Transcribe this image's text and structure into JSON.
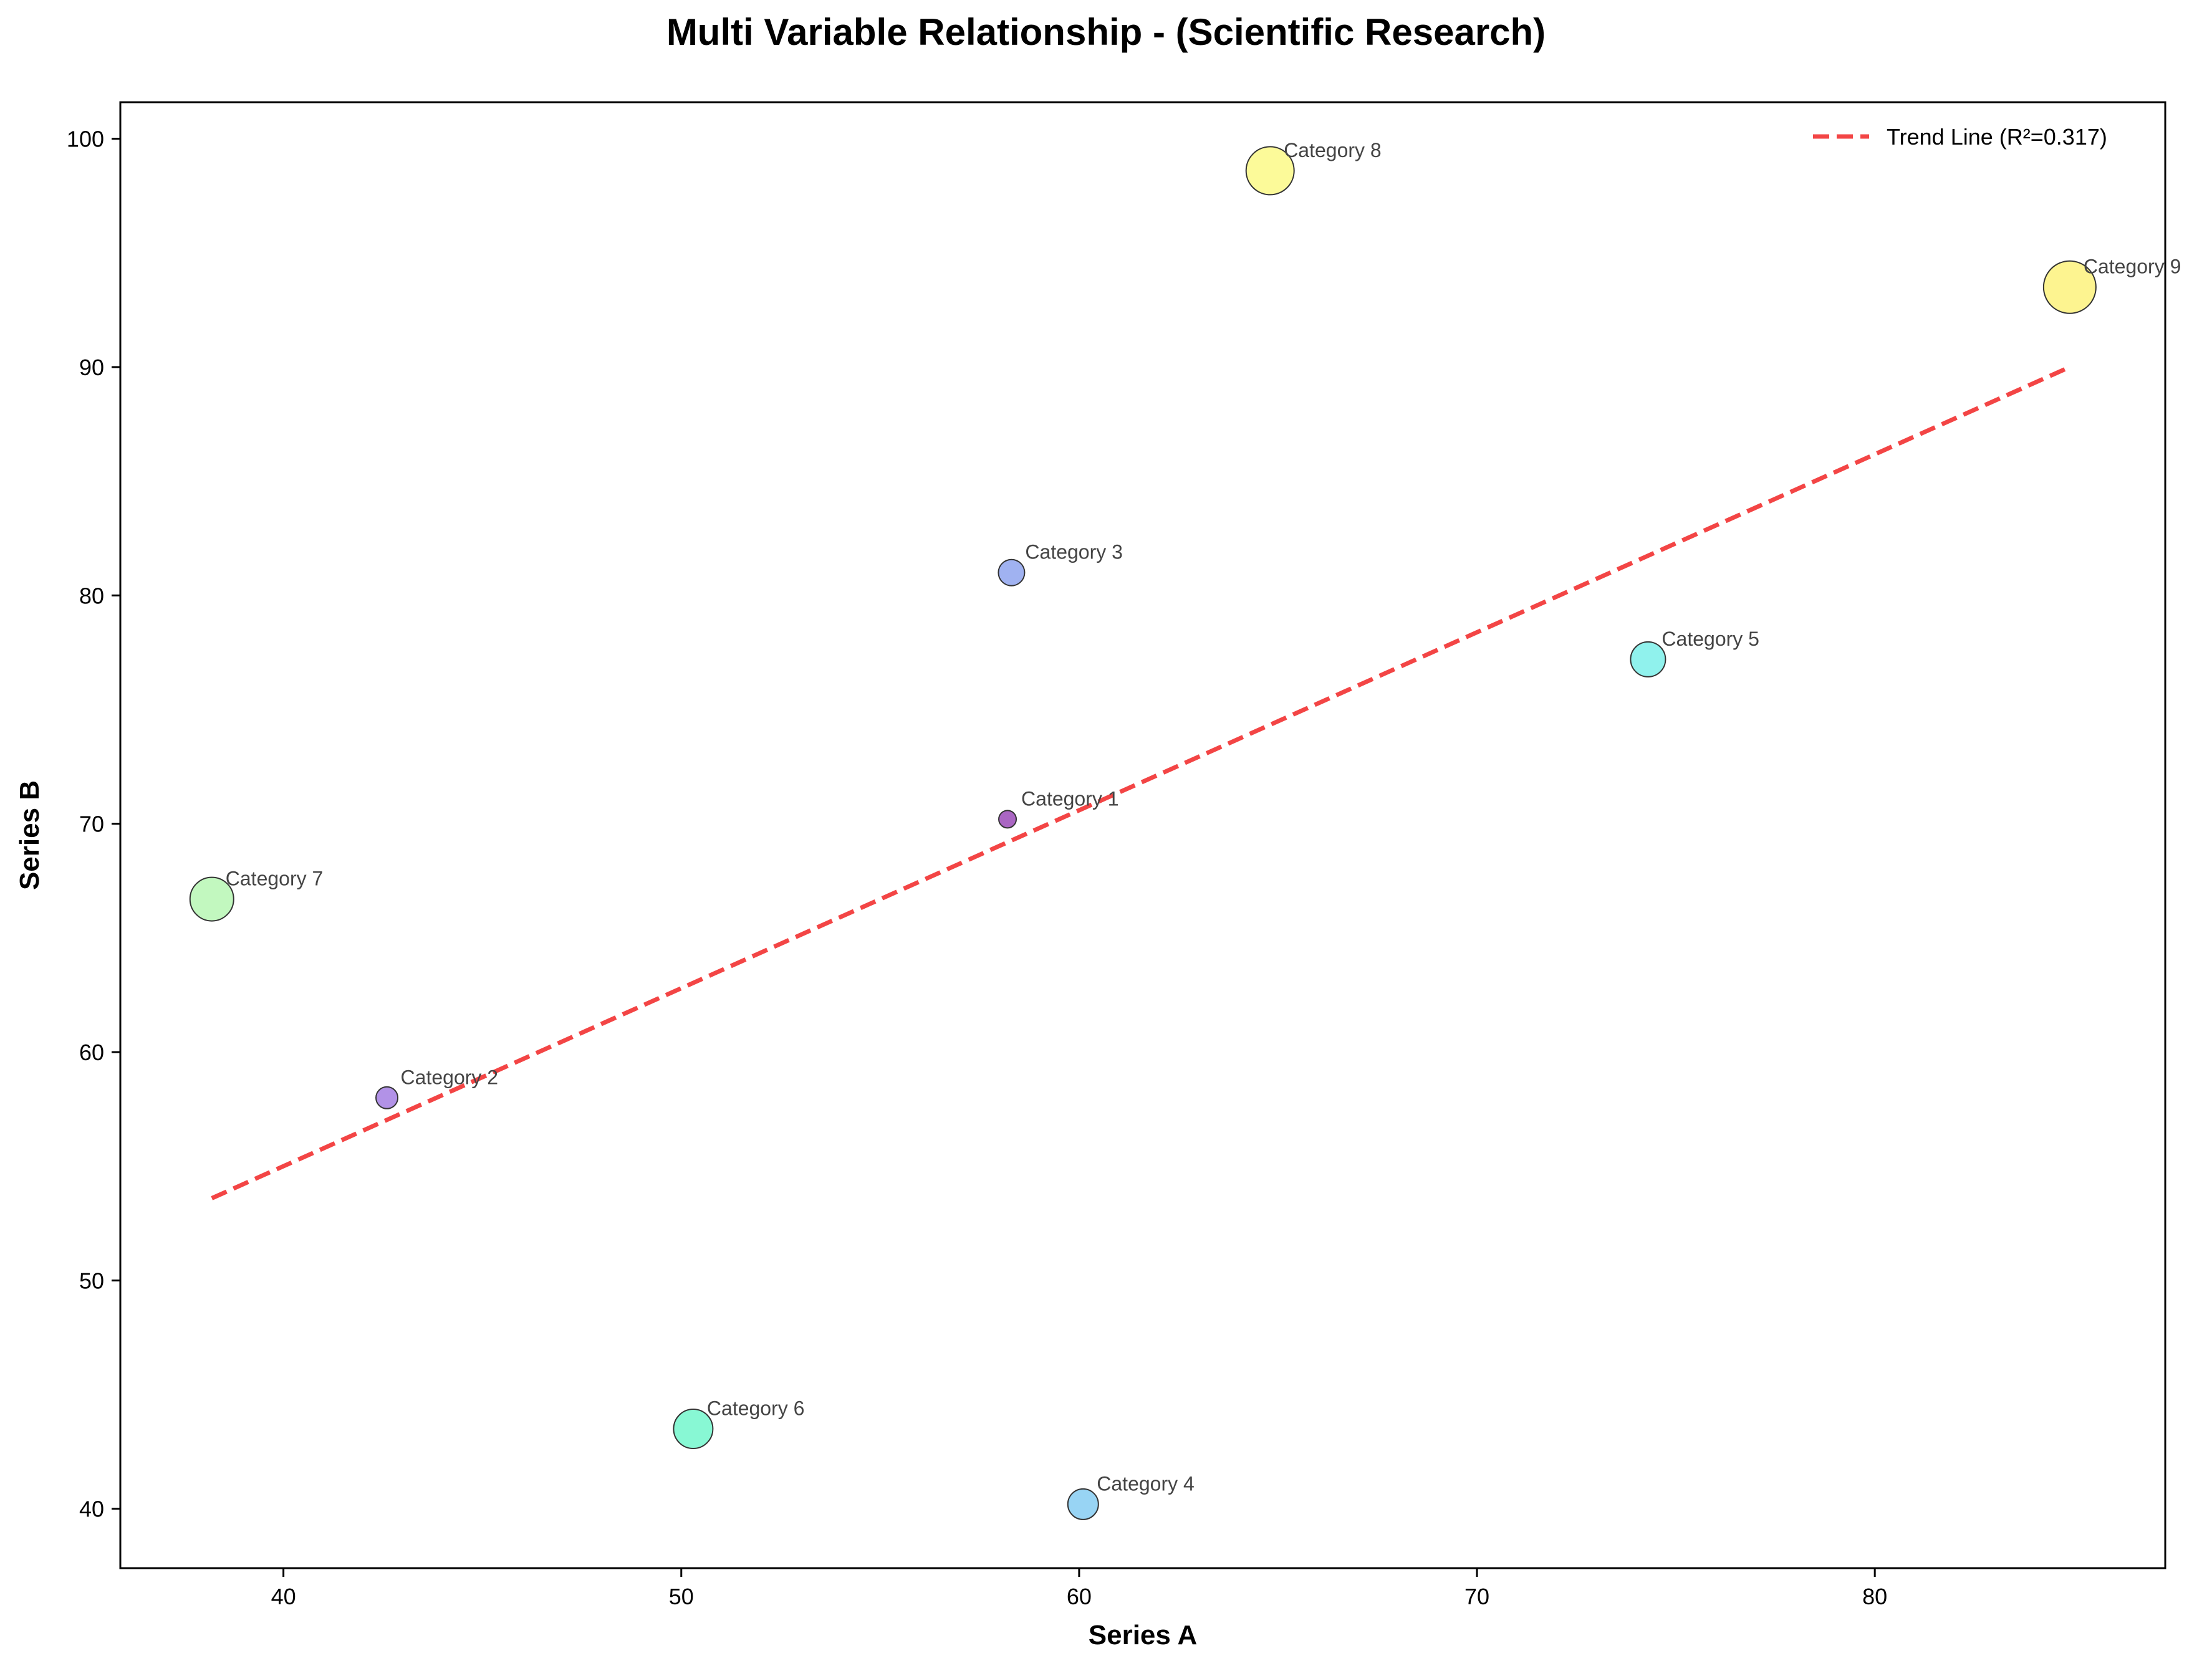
{
  "chart_data": {
    "type": "scatter",
    "title": "Multi Variable Relationship - (Scientific Research)",
    "xlabel": "Series A",
    "ylabel": "Series B",
    "xlim": [
      35.9,
      87.3
    ],
    "ylim": [
      37.4,
      101.6
    ],
    "xticks": [
      40,
      50,
      60,
      70,
      80
    ],
    "yticks": [
      40,
      50,
      60,
      70,
      80,
      90,
      100
    ],
    "grid": false,
    "legend": {
      "position": "top-right",
      "entries": [
        "Trend Line (R²=0.317)"
      ]
    },
    "points": [
      {
        "label": "Category 1",
        "x": 58.2,
        "y": 70.2,
        "size": 1,
        "color": "#9b4bb8"
      },
      {
        "label": "Category 2",
        "x": 42.6,
        "y": 58.0,
        "size": 2,
        "color": "#a57fe3"
      },
      {
        "label": "Category 3",
        "x": 58.3,
        "y": 81.0,
        "size": 3,
        "color": "#8fa5ef"
      },
      {
        "label": "Category 4",
        "x": 60.1,
        "y": 40.2,
        "size": 4,
        "color": "#86cdf2"
      },
      {
        "label": "Category 5",
        "x": 74.3,
        "y": 77.2,
        "size": 5,
        "color": "#7cf0ea"
      },
      {
        "label": "Category 6",
        "x": 50.3,
        "y": 43.5,
        "size": 6,
        "color": "#73f7cd"
      },
      {
        "label": "Category 7",
        "x": 38.2,
        "y": 66.7,
        "size": 7,
        "color": "#b7f7b4"
      },
      {
        "label": "Category 8",
        "x": 64.8,
        "y": 98.6,
        "size": 8,
        "color": "#fbf987"
      },
      {
        "label": "Category 9",
        "x": 84.9,
        "y": 93.5,
        "size": 9,
        "color": "#fdf27d"
      }
    ],
    "trend_line": {
      "label": "Trend Line (R²=0.317)",
      "color": "#f23b3b",
      "x": [
        38.2,
        84.9
      ],
      "y": [
        53.6,
        90.0
      ]
    }
  }
}
